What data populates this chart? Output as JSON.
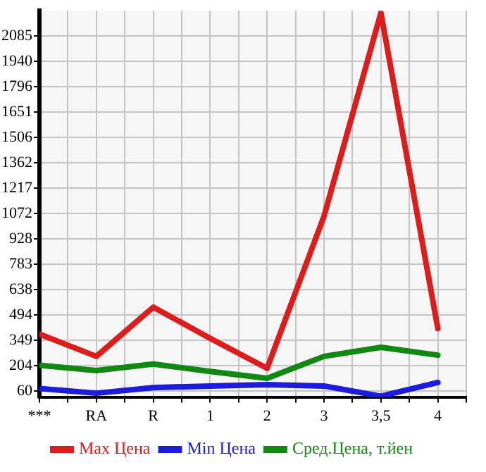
{
  "chart_data": {
    "type": "line",
    "categories": [
      "***",
      "RA",
      "R",
      "1",
      "2",
      "3",
      "3,5",
      "4"
    ],
    "series": [
      {
        "name": "Max Цена",
        "color": "#dd1c1c",
        "values": [
          385,
          258,
          539,
          361,
          190,
          1058,
          2218,
          417
        ]
      },
      {
        "name": "Min Цена",
        "color": "#1c1cdd",
        "values": [
          75,
          48,
          80,
          89,
          97,
          89,
          31,
          109
        ]
      },
      {
        "name": "Сред.Цена, т.йен",
        "color": "#118811",
        "values": [
          207,
          177,
          214,
          172,
          133,
          258,
          310,
          265
        ]
      }
    ],
    "ylim": [
      26,
      2230
    ],
    "yticks": [
      60,
      204,
      349,
      494,
      638,
      783,
      928,
      1072,
      1217,
      1362,
      1506,
      1651,
      1796,
      1940,
      2085
    ],
    "grid": true,
    "legend": "bottom",
    "marker": "none",
    "line_style": "solid"
  }
}
